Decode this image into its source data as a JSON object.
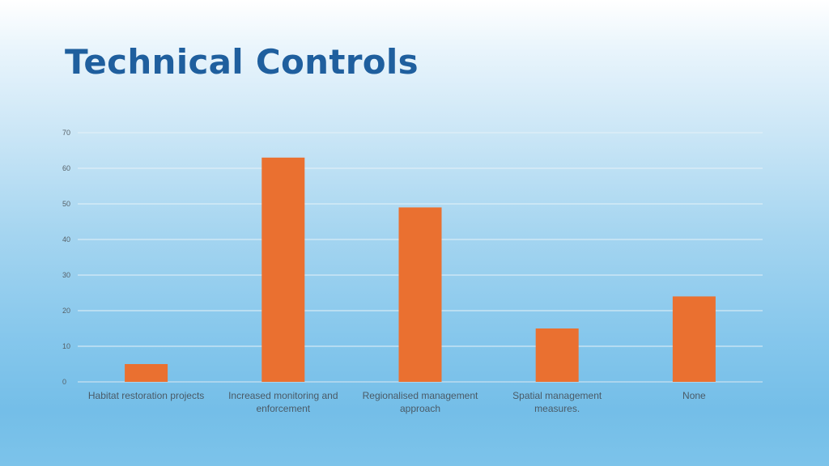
{
  "slide": {
    "title": "Technical Controls"
  },
  "colors": {
    "bar": "#ea7030",
    "title": "#1f5f9e",
    "grid": "#e6f1f8"
  },
  "chart_data": {
    "type": "bar",
    "title": "",
    "xlabel": "",
    "ylabel": "",
    "ylim": [
      0,
      70
    ],
    "yticks": [
      0,
      10,
      20,
      30,
      40,
      50,
      60,
      70
    ],
    "grid": true,
    "legend": "none",
    "categories": [
      [
        "Habitat restoration projects"
      ],
      [
        "Increased monitoring and",
        "enforcement"
      ],
      [
        "Regionalised management",
        "approach"
      ],
      [
        "Spatial management",
        "measures."
      ],
      [
        "None"
      ]
    ],
    "values": [
      5,
      63,
      49,
      15,
      24
    ]
  }
}
